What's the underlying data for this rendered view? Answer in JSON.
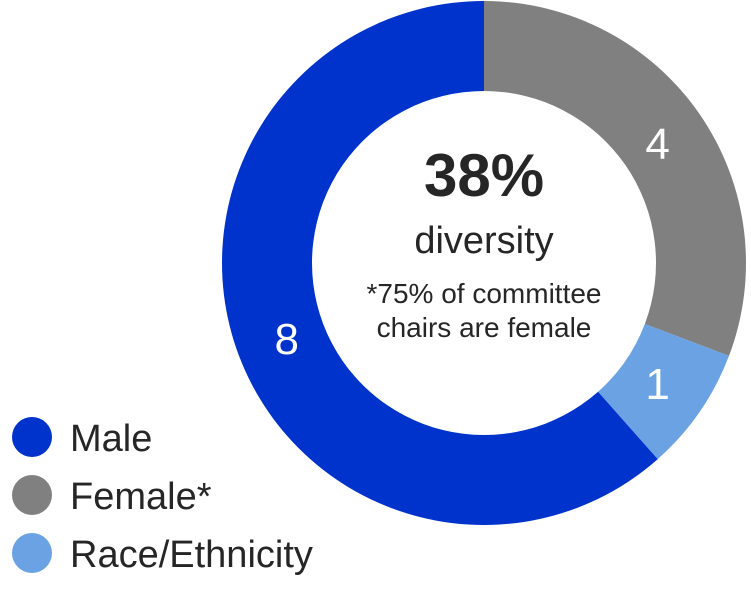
{
  "chart_data": {
    "type": "pie",
    "donut": true,
    "series": [
      {
        "name": "Female*",
        "value": 4,
        "label": "4",
        "color": "#808080"
      },
      {
        "name": "Race/Ethnicity",
        "value": 1,
        "label": "1",
        "color": "#6aa2e4"
      },
      {
        "name": "Male",
        "value": 8,
        "label": "8",
        "color": "#0033cc"
      }
    ],
    "center": {
      "value": "38%",
      "label": "diversity",
      "note_line1": "*75% of committee",
      "note_line2": "chairs are female"
    },
    "legend": {
      "placement": "bottom-left",
      "items": [
        {
          "name": "Male",
          "color": "#0033cc"
        },
        {
          "name": "Female*",
          "color": "#808080"
        },
        {
          "name": "Race/Ethnicity",
          "color": "#6aa2e4"
        }
      ]
    }
  }
}
